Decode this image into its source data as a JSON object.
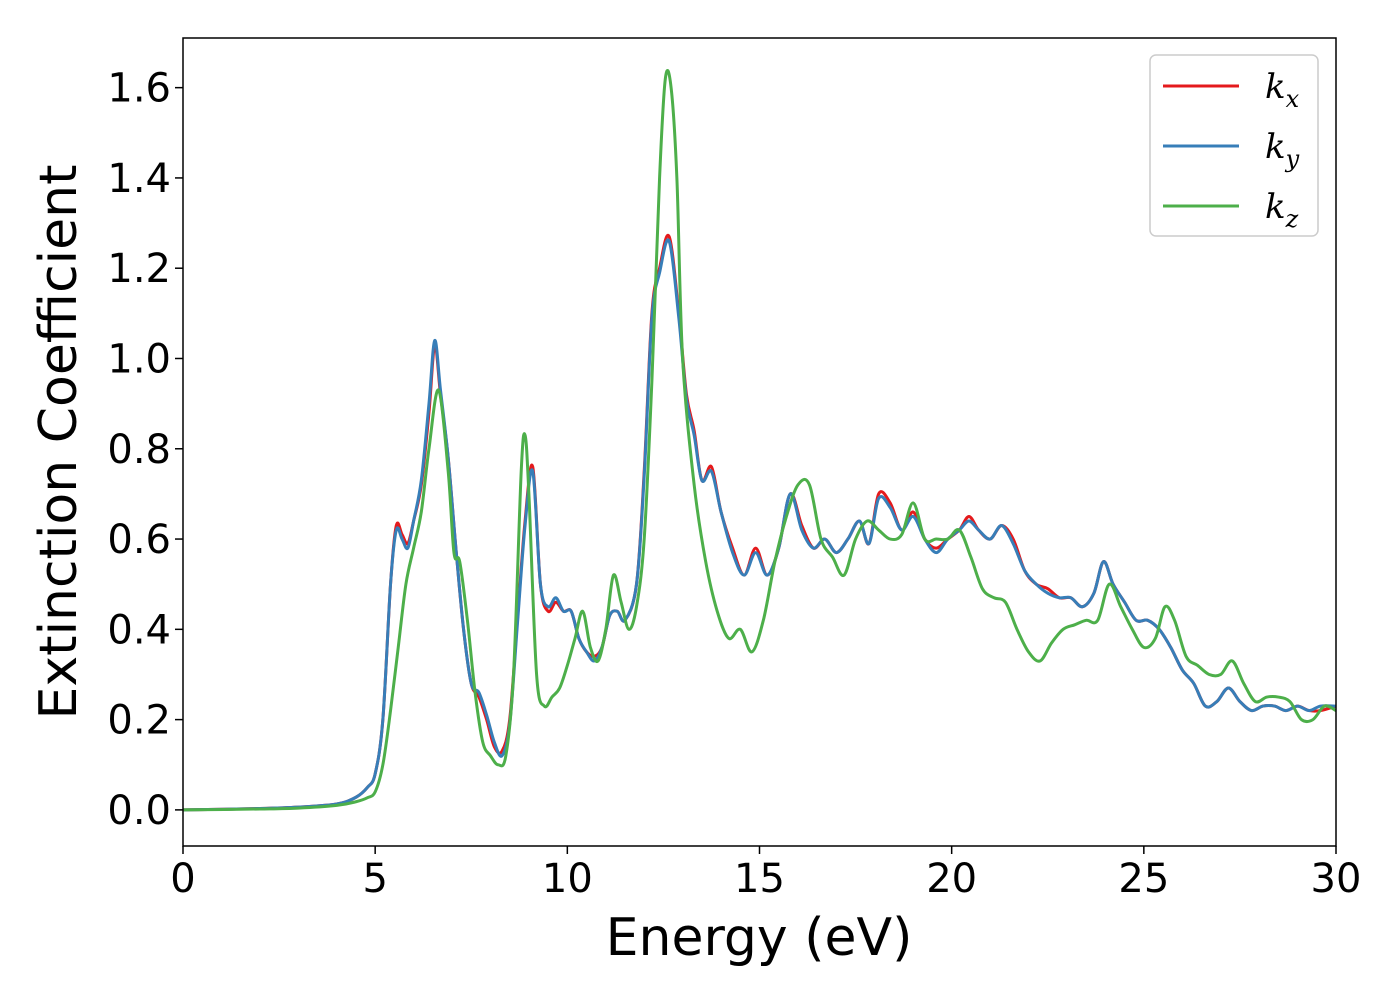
{
  "chart_data": {
    "type": "line",
    "title": "",
    "xlabel": "Energy (eV)",
    "ylabel": "Extinction Coefficient",
    "xlim": [
      0,
      30
    ],
    "ylim": [
      -0.08,
      1.71
    ],
    "xticks": [
      0,
      5,
      10,
      15,
      20,
      25,
      30
    ],
    "yticks": [
      0.0,
      0.2,
      0.4,
      0.6,
      0.8,
      1.0,
      1.2,
      1.4,
      1.6
    ],
    "grid": false,
    "legend": {
      "placement": "top-right"
    },
    "series": [
      {
        "name": "k_x",
        "name_main": "k",
        "name_sub": "x",
        "color": "#e41a1c",
        "x": [
          0,
          2,
          3,
          4,
          4.5,
          4.8,
          5.0,
          5.2,
          5.4,
          5.55,
          5.7,
          5.85,
          6.0,
          6.2,
          6.4,
          6.55,
          6.7,
          6.9,
          7.1,
          7.3,
          7.5,
          7.7,
          7.9,
          8.1,
          8.3,
          8.5,
          8.7,
          8.9,
          9.1,
          9.3,
          9.5,
          9.7,
          9.9,
          10.1,
          10.3,
          10.5,
          10.7,
          10.9,
          11.1,
          11.3,
          11.5,
          11.8,
          12.0,
          12.2,
          12.4,
          12.65,
          12.9,
          13.1,
          13.3,
          13.5,
          13.75,
          14.0,
          14.3,
          14.6,
          14.9,
          15.2,
          15.5,
          15.8,
          16.1,
          16.4,
          16.7,
          17.0,
          17.3,
          17.6,
          17.85,
          18.1,
          18.4,
          18.7,
          19.0,
          19.3,
          19.6,
          19.9,
          20.2,
          20.45,
          20.7,
          21.0,
          21.3,
          21.6,
          21.9,
          22.2,
          22.5,
          22.8,
          23.1,
          23.4,
          23.7,
          23.95,
          24.2,
          24.5,
          24.8,
          25.1,
          25.4,
          25.7,
          26.0,
          26.3,
          26.6,
          26.9,
          27.2,
          27.5,
          27.8,
          28.1,
          28.4,
          28.7,
          29.0,
          29.3,
          29.6,
          30.0
        ],
        "values": [
          0.0,
          0.003,
          0.006,
          0.013,
          0.028,
          0.05,
          0.08,
          0.2,
          0.5,
          0.63,
          0.61,
          0.59,
          0.64,
          0.72,
          0.88,
          1.03,
          0.92,
          0.78,
          0.58,
          0.4,
          0.28,
          0.25,
          0.2,
          0.14,
          0.13,
          0.2,
          0.42,
          0.64,
          0.76,
          0.5,
          0.44,
          0.46,
          0.44,
          0.44,
          0.38,
          0.35,
          0.34,
          0.36,
          0.43,
          0.44,
          0.42,
          0.5,
          0.75,
          1.1,
          1.2,
          1.27,
          1.1,
          0.92,
          0.84,
          0.73,
          0.76,
          0.66,
          0.58,
          0.52,
          0.58,
          0.52,
          0.58,
          0.7,
          0.63,
          0.58,
          0.6,
          0.57,
          0.6,
          0.64,
          0.59,
          0.7,
          0.68,
          0.62,
          0.66,
          0.6,
          0.58,
          0.6,
          0.62,
          0.65,
          0.62,
          0.6,
          0.63,
          0.6,
          0.53,
          0.5,
          0.49,
          0.47,
          0.47,
          0.45,
          0.48,
          0.55,
          0.5,
          0.46,
          0.42,
          0.42,
          0.4,
          0.36,
          0.31,
          0.28,
          0.23,
          0.24,
          0.27,
          0.24,
          0.22,
          0.23,
          0.23,
          0.22,
          0.23,
          0.22,
          0.22,
          0.23
        ]
      },
      {
        "name": "k_y",
        "name_main": "k",
        "name_sub": "y",
        "color": "#377eb8",
        "x": [
          0,
          2,
          3,
          4,
          4.5,
          4.8,
          5.0,
          5.2,
          5.4,
          5.55,
          5.7,
          5.85,
          6.0,
          6.2,
          6.4,
          6.55,
          6.7,
          6.9,
          7.1,
          7.3,
          7.5,
          7.7,
          7.9,
          8.1,
          8.3,
          8.5,
          8.7,
          8.9,
          9.1,
          9.3,
          9.5,
          9.7,
          9.9,
          10.1,
          10.3,
          10.5,
          10.7,
          10.9,
          11.1,
          11.3,
          11.5,
          11.8,
          12.0,
          12.2,
          12.4,
          12.65,
          12.9,
          13.1,
          13.3,
          13.5,
          13.75,
          14.0,
          14.3,
          14.6,
          14.9,
          15.2,
          15.5,
          15.8,
          16.1,
          16.4,
          16.7,
          17.0,
          17.3,
          17.6,
          17.85,
          18.1,
          18.4,
          18.7,
          19.0,
          19.3,
          19.6,
          19.9,
          20.2,
          20.45,
          20.7,
          21.0,
          21.3,
          21.6,
          21.9,
          22.2,
          22.5,
          22.8,
          23.1,
          23.4,
          23.7,
          23.95,
          24.2,
          24.5,
          24.8,
          25.1,
          25.4,
          25.7,
          26.0,
          26.3,
          26.6,
          26.9,
          27.2,
          27.5,
          27.8,
          28.1,
          28.4,
          28.7,
          29.0,
          29.3,
          29.6,
          30.0
        ],
        "values": [
          0.0,
          0.003,
          0.006,
          0.013,
          0.028,
          0.05,
          0.08,
          0.2,
          0.5,
          0.62,
          0.6,
          0.58,
          0.64,
          0.73,
          0.9,
          1.04,
          0.93,
          0.78,
          0.58,
          0.4,
          0.28,
          0.26,
          0.21,
          0.15,
          0.12,
          0.19,
          0.41,
          0.63,
          0.75,
          0.5,
          0.45,
          0.47,
          0.44,
          0.44,
          0.38,
          0.35,
          0.33,
          0.36,
          0.43,
          0.44,
          0.42,
          0.5,
          0.74,
          1.09,
          1.19,
          1.26,
          1.09,
          0.91,
          0.83,
          0.73,
          0.75,
          0.66,
          0.57,
          0.52,
          0.57,
          0.52,
          0.58,
          0.7,
          0.62,
          0.58,
          0.6,
          0.57,
          0.6,
          0.64,
          0.59,
          0.69,
          0.67,
          0.62,
          0.65,
          0.6,
          0.57,
          0.6,
          0.62,
          0.64,
          0.62,
          0.6,
          0.63,
          0.59,
          0.53,
          0.5,
          0.48,
          0.47,
          0.47,
          0.45,
          0.48,
          0.55,
          0.5,
          0.46,
          0.42,
          0.42,
          0.4,
          0.36,
          0.31,
          0.28,
          0.23,
          0.24,
          0.27,
          0.24,
          0.22,
          0.23,
          0.23,
          0.22,
          0.23,
          0.22,
          0.23,
          0.23
        ]
      },
      {
        "name": "k_z",
        "name_main": "k",
        "name_sub": "z",
        "color": "#4daf4a",
        "x": [
          0,
          2,
          3,
          4,
          4.5,
          4.8,
          5.0,
          5.2,
          5.4,
          5.6,
          5.8,
          6.0,
          6.2,
          6.4,
          6.65,
          6.9,
          7.05,
          7.2,
          7.4,
          7.6,
          7.8,
          8.0,
          8.2,
          8.4,
          8.6,
          8.8,
          8.9,
          9.0,
          9.2,
          9.4,
          9.6,
          9.8,
          10.0,
          10.2,
          10.4,
          10.6,
          10.8,
          11.0,
          11.2,
          11.4,
          11.6,
          11.8,
          12.0,
          12.2,
          12.4,
          12.55,
          12.7,
          12.85,
          13.0,
          13.3,
          13.6,
          13.9,
          14.2,
          14.5,
          14.8,
          15.1,
          15.4,
          15.7,
          16.0,
          16.3,
          16.6,
          16.9,
          17.2,
          17.5,
          17.8,
          18.1,
          18.4,
          18.7,
          19.0,
          19.3,
          19.6,
          19.9,
          20.2,
          20.5,
          20.8,
          21.1,
          21.4,
          21.7,
          22.0,
          22.3,
          22.6,
          22.9,
          23.2,
          23.5,
          23.8,
          24.1,
          24.4,
          24.7,
          25.0,
          25.3,
          25.55,
          25.8,
          26.1,
          26.4,
          26.7,
          27.0,
          27.3,
          27.6,
          27.9,
          28.2,
          28.5,
          28.8,
          29.1,
          29.4,
          29.7,
          30.0
        ],
        "values": [
          0.0,
          0.002,
          0.004,
          0.01,
          0.018,
          0.027,
          0.04,
          0.1,
          0.22,
          0.36,
          0.5,
          0.58,
          0.66,
          0.8,
          0.93,
          0.75,
          0.57,
          0.55,
          0.42,
          0.26,
          0.15,
          0.12,
          0.1,
          0.12,
          0.3,
          0.75,
          0.83,
          0.7,
          0.3,
          0.23,
          0.25,
          0.27,
          0.32,
          0.38,
          0.44,
          0.36,
          0.33,
          0.4,
          0.52,
          0.46,
          0.4,
          0.45,
          0.6,
          0.95,
          1.4,
          1.62,
          1.6,
          1.4,
          1.0,
          0.72,
          0.55,
          0.44,
          0.38,
          0.4,
          0.35,
          0.42,
          0.55,
          0.65,
          0.72,
          0.72,
          0.6,
          0.56,
          0.52,
          0.6,
          0.64,
          0.62,
          0.6,
          0.61,
          0.68,
          0.6,
          0.6,
          0.6,
          0.62,
          0.56,
          0.49,
          0.47,
          0.46,
          0.4,
          0.35,
          0.33,
          0.37,
          0.4,
          0.41,
          0.42,
          0.42,
          0.5,
          0.45,
          0.4,
          0.36,
          0.38,
          0.45,
          0.42,
          0.34,
          0.32,
          0.3,
          0.3,
          0.33,
          0.28,
          0.24,
          0.25,
          0.25,
          0.24,
          0.2,
          0.2,
          0.23,
          0.22
        ]
      }
    ]
  }
}
